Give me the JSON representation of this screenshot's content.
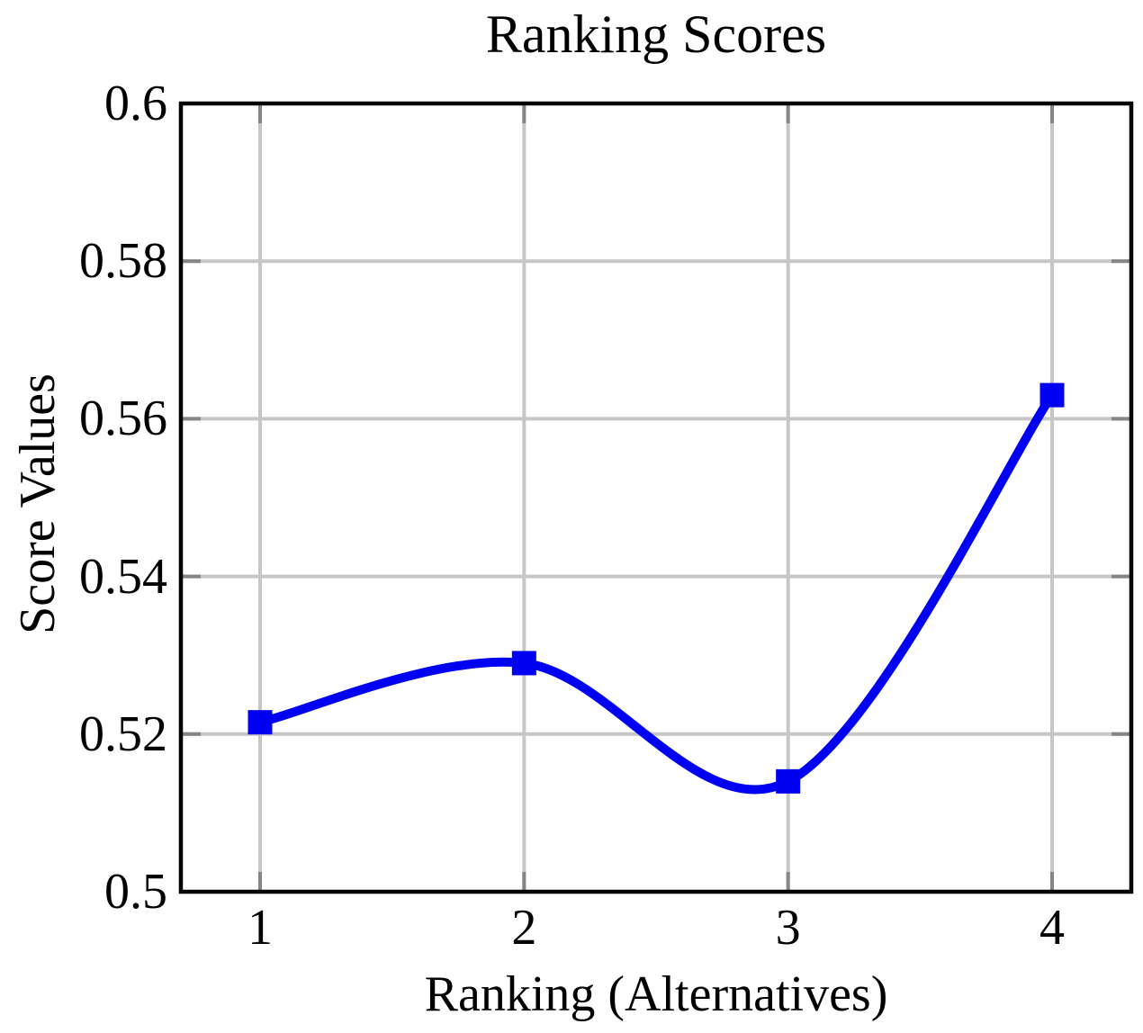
{
  "chart_data": {
    "type": "line",
    "title": "Ranking Scores",
    "xlabel": "Ranking (Alternatives)",
    "ylabel": "Score Values",
    "x": [
      1,
      2,
      3,
      4
    ],
    "series": [
      {
        "name": "ranking-scores",
        "values": [
          0.5215,
          0.529,
          0.514,
          0.563
        ]
      }
    ],
    "xlim": [
      0.7,
      4.3
    ],
    "ylim": [
      0.5,
      0.6
    ],
    "xticks": [
      1,
      2,
      3,
      4
    ],
    "xtick_labels": [
      "1",
      "2",
      "3",
      "4"
    ],
    "yticks": [
      0.5,
      0.52,
      0.54,
      0.56,
      0.58,
      0.6
    ],
    "ytick_labels": [
      "0.5",
      "0.52",
      "0.54",
      "0.56",
      "0.58",
      "0.6"
    ],
    "grid": true,
    "legend": false,
    "smooth": true,
    "marker": "square",
    "colors": {
      "line": "#0000f2",
      "marker": "#0000f2",
      "grid": "#c6c6c6",
      "tick": "#858585",
      "axis": "#000000",
      "text": "#000000",
      "background": "#ffffff"
    }
  }
}
